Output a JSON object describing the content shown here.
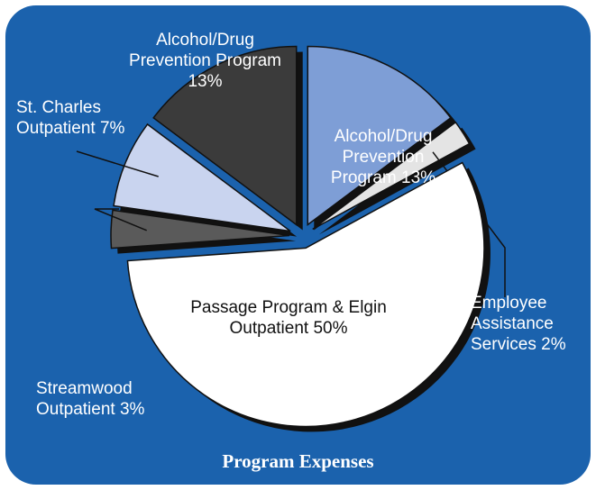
{
  "chart_data": {
    "type": "pie",
    "title": "Program Expenses",
    "categories": [
      "Alcohol/Drug Prevention Program",
      "Employee Assistance Services",
      "Passage Program & Elgin Outpatient",
      "Streamwood Outpatient",
      "St. Charles Outpatient",
      "Alcohol/Drug Prevention Program"
    ],
    "values": [
      13,
      2,
      50,
      3,
      7,
      13
    ],
    "value_labels": [
      "13%",
      "2%",
      "50%",
      "3%",
      "7%",
      "13%"
    ],
    "colors": [
      "#7e9ed6",
      "#e4e4e4",
      "#ffffff",
      "#5a5a5a",
      "#c9d4ef",
      "#3b3b3b"
    ]
  }
}
